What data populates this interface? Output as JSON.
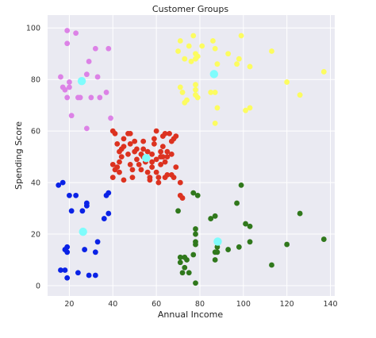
{
  "chart_data": {
    "type": "scatter",
    "title": "Customer Groups",
    "xlabel": "Annual Income",
    "ylabel": "Spending Score",
    "xlim": [
      10,
      142
    ],
    "ylim": [
      -4,
      105
    ],
    "xticks": [
      20,
      40,
      60,
      80,
      100,
      120,
      140
    ],
    "yticks": [
      0,
      20,
      40,
      60,
      80,
      100
    ],
    "grid": true,
    "background": "#eaeaf2",
    "centroid_color": "#7ffcfc",
    "series": [
      {
        "color": "#dc3220",
        "points": [
          [
            40,
            60
          ],
          [
            41,
            59
          ],
          [
            42,
            55
          ],
          [
            43,
            52
          ],
          [
            40,
            47
          ],
          [
            41,
            45
          ],
          [
            42,
            46
          ],
          [
            43,
            44
          ],
          [
            44,
            50
          ],
          [
            45,
            54
          ],
          [
            45,
            57
          ],
          [
            47,
            59
          ],
          [
            48,
            59
          ],
          [
            48,
            55
          ],
          [
            47,
            51
          ],
          [
            48,
            47
          ],
          [
            49,
            45
          ],
          [
            49,
            42
          ],
          [
            50,
            56
          ],
          [
            50,
            52
          ],
          [
            51,
            49
          ],
          [
            52,
            47
          ],
          [
            53,
            45
          ],
          [
            54,
            50
          ],
          [
            54,
            53
          ],
          [
            54,
            56
          ],
          [
            55,
            48
          ],
          [
            56,
            44
          ],
          [
            57,
            41
          ],
          [
            58,
            46
          ],
          [
            58,
            48
          ],
          [
            58,
            51
          ],
          [
            59,
            55
          ],
          [
            59,
            57
          ],
          [
            60,
            60
          ],
          [
            60,
            49
          ],
          [
            60,
            44
          ],
          [
            61,
            40
          ],
          [
            61,
            42
          ],
          [
            62,
            47
          ],
          [
            62,
            50
          ],
          [
            62,
            52
          ],
          [
            63,
            54
          ],
          [
            63,
            58
          ],
          [
            64,
            59
          ],
          [
            64,
            48
          ],
          [
            64,
            42
          ],
          [
            65,
            43
          ],
          [
            65,
            50
          ],
          [
            65,
            52
          ],
          [
            66,
            59
          ],
          [
            67,
            56
          ],
          [
            67,
            51
          ],
          [
            67,
            43
          ],
          [
            68,
            42
          ],
          [
            68,
            57
          ],
          [
            69,
            58
          ],
          [
            69,
            46
          ],
          [
            40,
            42
          ],
          [
            43,
            48
          ],
          [
            45,
            41
          ],
          [
            71,
            35
          ],
          [
            72,
            34
          ],
          [
            71,
            40
          ],
          [
            51,
            53
          ],
          [
            53,
            51
          ],
          [
            56,
            52
          ],
          [
            44,
            53
          ],
          [
            63,
            50
          ],
          [
            57,
            42
          ]
        ]
      },
      {
        "color": "#0a22e6",
        "points": [
          [
            15,
            39
          ],
          [
            16,
            6
          ],
          [
            17,
            40
          ],
          [
            18,
            14
          ],
          [
            18,
            6
          ],
          [
            19,
            3
          ],
          [
            19,
            15
          ],
          [
            19,
            13
          ],
          [
            20,
            35
          ],
          [
            21,
            29
          ],
          [
            23,
            35
          ],
          [
            24,
            5
          ],
          [
            26,
            29
          ],
          [
            27,
            14
          ],
          [
            28,
            32
          ],
          [
            28,
            31
          ],
          [
            29,
            4
          ],
          [
            32,
            4
          ],
          [
            32,
            13
          ],
          [
            33,
            17
          ],
          [
            36,
            26
          ],
          [
            37,
            35
          ],
          [
            38,
            36
          ],
          [
            38,
            28
          ]
        ]
      },
      {
        "color": "#dc82e6",
        "points": [
          [
            16,
            81
          ],
          [
            17,
            77
          ],
          [
            18,
            76
          ],
          [
            19,
            73
          ],
          [
            19,
            94
          ],
          [
            19,
            99
          ],
          [
            20,
            77
          ],
          [
            20,
            79
          ],
          [
            21,
            66
          ],
          [
            23,
            98
          ],
          [
            24,
            73
          ],
          [
            25,
            73
          ],
          [
            28,
            61
          ],
          [
            28,
            82
          ],
          [
            29,
            87
          ],
          [
            30,
            73
          ],
          [
            32,
            92
          ],
          [
            33,
            81
          ],
          [
            34,
            73
          ],
          [
            37,
            75
          ],
          [
            38,
            92
          ],
          [
            39,
            65
          ]
        ]
      },
      {
        "color": "#fcfc60",
        "points": [
          [
            70,
            91
          ],
          [
            71,
            77
          ],
          [
            71,
            95
          ],
          [
            72,
            75
          ],
          [
            73,
            71
          ],
          [
            73,
            88
          ],
          [
            74,
            72
          ],
          [
            75,
            93
          ],
          [
            76,
            87
          ],
          [
            77,
            97
          ],
          [
            78,
            88
          ],
          [
            78,
            90
          ],
          [
            78,
            74
          ],
          [
            78,
            76
          ],
          [
            78,
            78
          ],
          [
            79,
            73
          ],
          [
            79,
            89
          ],
          [
            81,
            93
          ],
          [
            85,
            75
          ],
          [
            86,
            95
          ],
          [
            87,
            92
          ],
          [
            87,
            75
          ],
          [
            87,
            63
          ],
          [
            88,
            69
          ],
          [
            88,
            86
          ],
          [
            93,
            90
          ],
          [
            97,
            86
          ],
          [
            98,
            88
          ],
          [
            99,
            97
          ],
          [
            101,
            68
          ],
          [
            103,
            85
          ],
          [
            103,
            69
          ],
          [
            113,
            91
          ],
          [
            120,
            79
          ],
          [
            126,
            74
          ],
          [
            137,
            83
          ]
        ]
      },
      {
        "color": "#30781c",
        "points": [
          [
            70,
            29
          ],
          [
            71,
            11
          ],
          [
            71,
            9
          ],
          [
            72,
            5
          ],
          [
            73,
            7
          ],
          [
            73,
            11
          ],
          [
            74,
            10
          ],
          [
            75,
            5
          ],
          [
            77,
            12
          ],
          [
            77,
            36
          ],
          [
            78,
            22
          ],
          [
            78,
            20
          ],
          [
            78,
            17
          ],
          [
            78,
            16
          ],
          [
            78,
            1
          ],
          [
            79,
            35
          ],
          [
            85,
            26
          ],
          [
            87,
            27
          ],
          [
            87,
            13
          ],
          [
            87,
            10
          ],
          [
            88,
            13
          ],
          [
            88,
            15
          ],
          [
            93,
            14
          ],
          [
            97,
            32
          ],
          [
            98,
            15
          ],
          [
            99,
            39
          ],
          [
            101,
            24
          ],
          [
            103,
            23
          ],
          [
            103,
            17
          ],
          [
            113,
            8
          ],
          [
            120,
            16
          ],
          [
            126,
            28
          ],
          [
            137,
            18
          ]
        ]
      },
      {
        "color": "#7ffcfc",
        "size": "large",
        "points": [
          [
            55.3,
            49.5
          ],
          [
            86.5,
            82.1
          ],
          [
            25.7,
            79.4
          ],
          [
            26.3,
            20.9
          ],
          [
            88.2,
            17.1
          ]
        ]
      }
    ]
  }
}
